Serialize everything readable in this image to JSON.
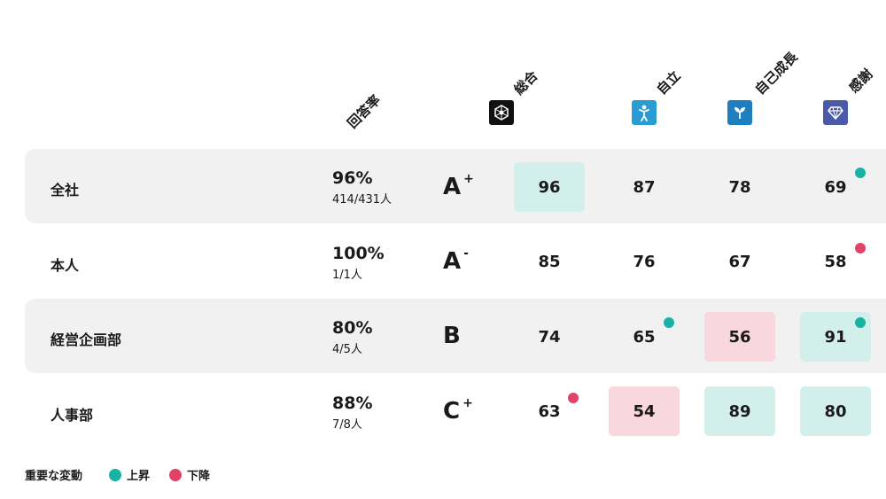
{
  "headers": {
    "rate": "回答率",
    "total": "総合",
    "independence": "自立",
    "growth": "自己成長",
    "gratitude": "感謝"
  },
  "icons": {
    "total": "network-hexagon-icon",
    "independence": "person-standing-icon",
    "growth": "sprout-icon",
    "gratitude": "diamond-icon"
  },
  "colors": {
    "up": "#19b3a3",
    "down": "#e04268",
    "up_bg": "#d3efec",
    "down_bg": "#f8d7de",
    "icon_total": "#111111",
    "icon_independence": "#2b9bd4",
    "icon_growth": "#1e7fc0",
    "icon_gratitude": "#4a5aa8"
  },
  "rows": [
    {
      "name": "全社",
      "rate": "96%",
      "count": "414/431人",
      "grade": "A",
      "grade_mod": "+",
      "scores": [
        "96",
        "87",
        "78",
        "69"
      ]
    },
    {
      "name": "本人",
      "rate": "100%",
      "count": "1/1人",
      "grade": "A",
      "grade_mod": "-",
      "scores": [
        "85",
        "76",
        "67",
        "58"
      ]
    },
    {
      "name": "経営企画部",
      "rate": "80%",
      "count": "4/5人",
      "grade": "B",
      "grade_mod": "",
      "scores": [
        "74",
        "65",
        "56",
        "91"
      ]
    },
    {
      "name": "人事部",
      "rate": "88%",
      "count": "7/8人",
      "grade": "C",
      "grade_mod": "+",
      "scores": [
        "63",
        "54",
        "89",
        "80"
      ]
    }
  ],
  "legend": {
    "title": "重要な変動",
    "up": "上昇",
    "down": "下降"
  }
}
